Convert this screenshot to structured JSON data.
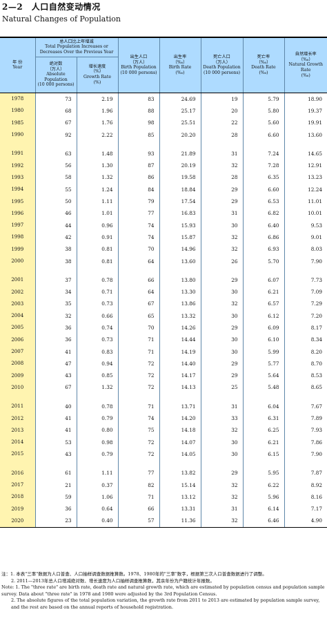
{
  "title": {
    "cn": "2—2　人口自然变动情况",
    "en": "Natural Changes of Population"
  },
  "headers": {
    "year_cn": "年  份",
    "year_en": "Year",
    "group_cn": "总人口比上年增减",
    "group_en": "Total Population Increases or Decreases Over the Previous Year",
    "absolute_cn": "绝对数",
    "absolute_unit": "（万人）",
    "absolute_en": "Absolute Population",
    "absolute_en_unit": "(10 000 persons)",
    "growth_cn": "增长速度",
    "growth_unit": "（%）",
    "growth_en": "Growth Rate",
    "growth_en_unit": "(%)",
    "births_cn": "出生人口",
    "births_unit": "（万人）",
    "births_en": "Birth Population",
    "births_en_unit": "(10 000 persons)",
    "birthrate_cn": "出生率",
    "birthrate_unit": "（‰）",
    "birthrate_en": "Birth Rate",
    "birthrate_en_unit": "(‰)",
    "deaths_cn": "死亡人口",
    "deaths_unit": "（万人）",
    "deaths_en": "Death Population",
    "deaths_en_unit": "(10 000 persons)",
    "deathrate_cn": "死亡率",
    "deathrate_unit": "（‰）",
    "deathrate_en": "Death Rate",
    "deathrate_en_unit": "(‰)",
    "natural_cn": "自然增长率",
    "natural_unit": "（‰）",
    "natural_en": "Natural Growth Rate",
    "natural_en_unit": "(‰)"
  },
  "groups": [
    [
      [
        "1978",
        "73",
        "2.19",
        "83",
        "24.69",
        "19",
        "5.79",
        "18.90"
      ],
      [
        "1980",
        "68",
        "1.96",
        "88",
        "25.17",
        "20",
        "5.80",
        "19.37"
      ],
      [
        "1985",
        "67",
        "1.76",
        "98",
        "25.51",
        "22",
        "5.60",
        "19.91"
      ],
      [
        "1990",
        "92",
        "2.22",
        "85",
        "20.20",
        "28",
        "6.60",
        "13.60"
      ]
    ],
    [
      [
        "1991",
        "63",
        "1.48",
        "93",
        "21.89",
        "31",
        "7.24",
        "14.65"
      ],
      [
        "1992",
        "56",
        "1.30",
        "87",
        "20.19",
        "32",
        "7.28",
        "12.91"
      ],
      [
        "1993",
        "58",
        "1.32",
        "86",
        "19.58",
        "28",
        "6.35",
        "13.23"
      ],
      [
        "1994",
        "55",
        "1.24",
        "84",
        "18.84",
        "29",
        "6.60",
        "12.24"
      ],
      [
        "1995",
        "50",
        "1.11",
        "79",
        "17.54",
        "29",
        "6.53",
        "11.01"
      ],
      [
        "1996",
        "46",
        "1.01",
        "77",
        "16.83",
        "31",
        "6.82",
        "10.01"
      ],
      [
        "1997",
        "44",
        "0.96",
        "74",
        "15.93",
        "30",
        "6.40",
        "9.53"
      ],
      [
        "1998",
        "42",
        "0.91",
        "74",
        "15.87",
        "32",
        "6.86",
        "9.01"
      ],
      [
        "1999",
        "38",
        "0.81",
        "70",
        "14.96",
        "32",
        "6.93",
        "8.03"
      ],
      [
        "2000",
        "38",
        "0.81",
        "64",
        "13.60",
        "26",
        "5.70",
        "7.90"
      ]
    ],
    [
      [
        "2001",
        "37",
        "0.78",
        "66",
        "13.80",
        "29",
        "6.07",
        "7.73"
      ],
      [
        "2002",
        "34",
        "0.71",
        "64",
        "13.30",
        "30",
        "6.21",
        "7.09"
      ],
      [
        "2003",
        "35",
        "0.73",
        "67",
        "13.86",
        "32",
        "6.57",
        "7.29"
      ],
      [
        "2004",
        "32",
        "0.66",
        "65",
        "13.32",
        "30",
        "6.12",
        "7.20"
      ],
      [
        "2005",
        "36",
        "0.74",
        "70",
        "14.26",
        "29",
        "6.09",
        "8.17"
      ],
      [
        "2006",
        "36",
        "0.73",
        "71",
        "14.44",
        "30",
        "6.10",
        "8.34"
      ],
      [
        "2007",
        "41",
        "0.83",
        "71",
        "14.19",
        "30",
        "5.99",
        "8.20"
      ],
      [
        "2008",
        "47",
        "0.94",
        "72",
        "14.40",
        "29",
        "5.77",
        "8.70"
      ],
      [
        "2009",
        "43",
        "0.85",
        "72",
        "14.17",
        "29",
        "5.64",
        "8.53"
      ],
      [
        "2010",
        "67",
        "1.32",
        "72",
        "14.13",
        "25",
        "5.48",
        "8.65"
      ]
    ],
    [
      [
        "2011",
        "40",
        "0.78",
        "71",
        "13.71",
        "31",
        "6.04",
        "7.67"
      ],
      [
        "2012",
        "41",
        "0.79",
        "74",
        "14.20",
        "33",
        "6.31",
        "7.89"
      ],
      [
        "2013",
        "41",
        "0.80",
        "75",
        "14.18",
        "32",
        "6.25",
        "7.93"
      ],
      [
        "2014",
        "53",
        "0.98",
        "72",
        "14.07",
        "30",
        "6.21",
        "7.86"
      ],
      [
        "2015",
        "43",
        "0.79",
        "72",
        "14.05",
        "30",
        "6.15",
        "7.90"
      ]
    ],
    [
      [
        "2016",
        "61",
        "1.11",
        "77",
        "13.82",
        "29",
        "5.95",
        "7.87"
      ],
      [
        "2017",
        "21",
        "0.37",
        "82",
        "15.14",
        "32",
        "6.22",
        "8.92"
      ],
      [
        "2018",
        "59",
        "1.06",
        "71",
        "13.12",
        "32",
        "5.96",
        "8.16"
      ],
      [
        "2019",
        "36",
        "0.64",
        "66",
        "13.31",
        "31",
        "6.14",
        "7.17"
      ],
      [
        "2020",
        "23",
        "0.40",
        "57",
        "11.36",
        "32",
        "6.46",
        "4.90"
      ]
    ]
  ],
  "notes": [
    "注：1. 本表\"三率\"数据为人口普查、人口抽样调查数据推算数。1978、1980年的\"三率\"数字，根据第三次人口普查数据进行了调整。",
    "2. 2011—2013年总人口增减绝对数、增长速度为人口抽样调查推算数，其余年份为户籍统计年报数。",
    "Note: 1. The \"three rate\" are birth rate, death rate and natural growth rate, which are estimated by population census and population sample survey. Data about \"three rate\" in 1978 and 1980 were adjusted by the 3rd Population Census.",
    "2. The absolute figures of the total population variation, the growth rate from 2011 to 2013 are estimated by population sample survey, and the rest are based on the annual reports of household registration."
  ]
}
